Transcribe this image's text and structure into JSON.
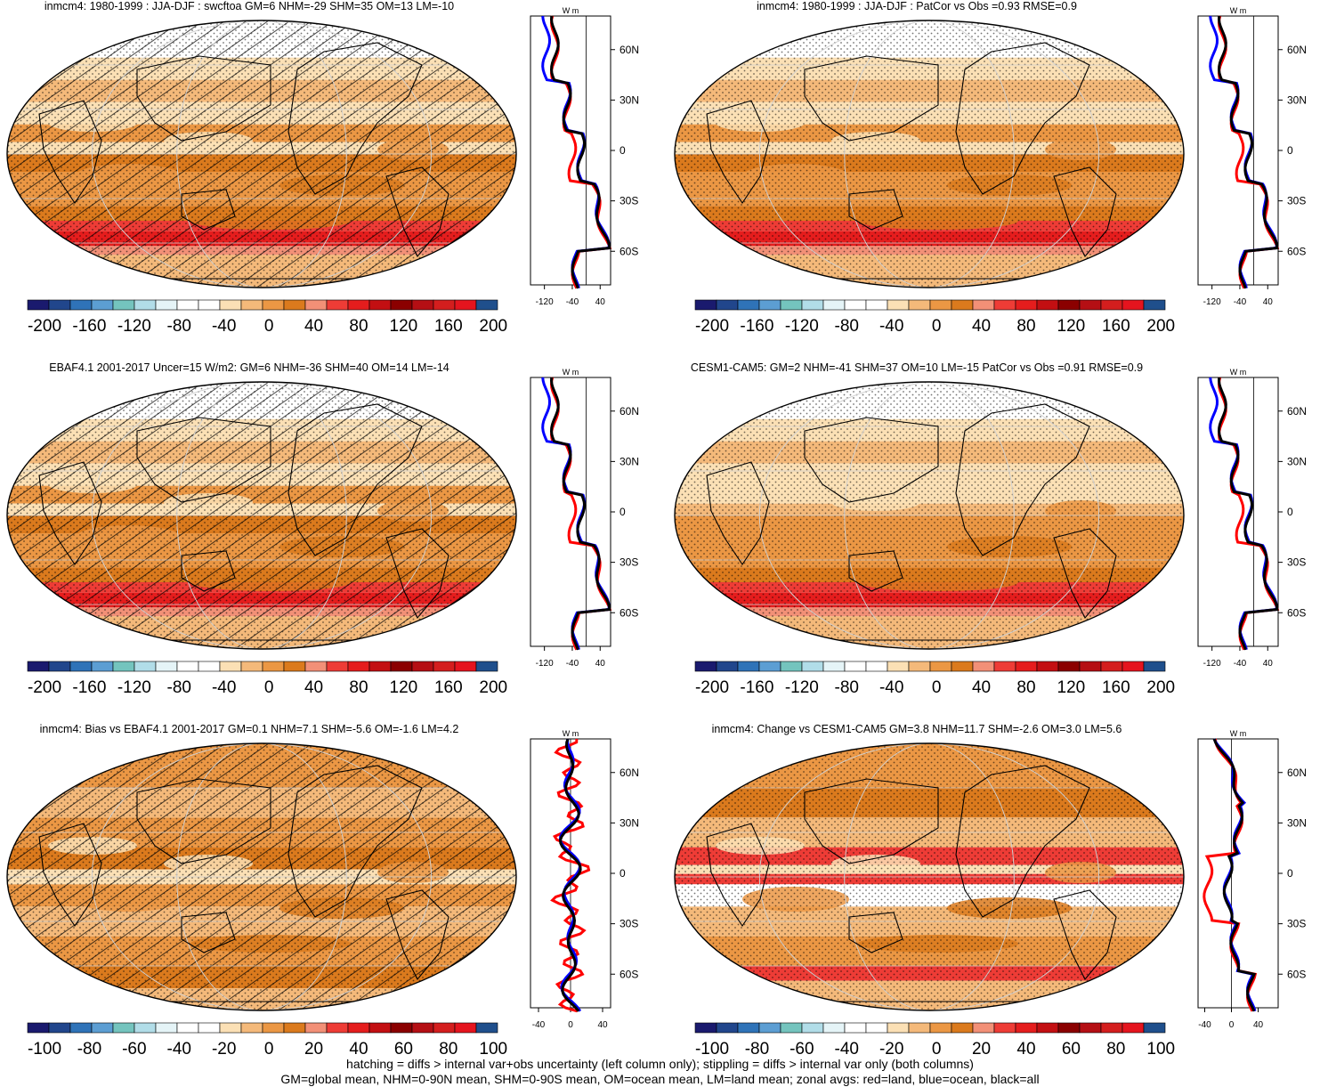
{
  "palette": [
    "#1a1a6e",
    "#21468c",
    "#2f73b8",
    "#5c9ed3",
    "#74c4be",
    "#b1dde8",
    "#e5f4f7",
    "#ffffff",
    "#ffffff",
    "#fbe0b5",
    "#f4b97a",
    "#eb9744",
    "#db7a1d",
    "#f29077",
    "#ee3c36",
    "#e51d1d",
    "#c30f12",
    "#8b0000",
    "#b50f14",
    "#d41e1e",
    "#e5141e",
    "#1f4f8c"
  ],
  "zonal_colors": {
    "land": "#ff0000",
    "ocean": "#0000ff",
    "all": "#000000"
  },
  "lat_ticks": [
    "60N",
    "30N",
    "0",
    "30S",
    "60S"
  ],
  "units": "W m",
  "panels": [
    {
      "title": "inmcm4: 1980-1999 : JJA-DJF : swcftoa GM=6 NHM=-29 SHM=35 OM=13 LM=-10",
      "cb_labels": [
        "-200",
        "-160",
        "-120",
        "-80",
        "-40",
        "0",
        "40",
        "80",
        "120",
        "160",
        "200"
      ],
      "x_ticks": [
        "-120",
        "-40",
        "40"
      ],
      "x_range": [
        -160,
        70
      ],
      "hatch": true,
      "style": "a"
    },
    {
      "title": "inmcm4: 1980-1999 : JJA-DJF : PatCor vs Obs =0.93 RMSE=0.9",
      "cb_labels": [
        "-200",
        "-160",
        "-120",
        "-80",
        "-40",
        "0",
        "40",
        "80",
        "120",
        "160",
        "200"
      ],
      "x_ticks": [
        "-120",
        "-40",
        "40"
      ],
      "x_range": [
        -160,
        70
      ],
      "hatch": false,
      "style": "a"
    },
    {
      "title": "EBAF4.1 2001-2017 Uncer=15 W/m2: GM=6 NHM=-36 SHM=40 OM=14 LM=-14",
      "cb_labels": [
        "-200",
        "-160",
        "-120",
        "-80",
        "-40",
        "0",
        "40",
        "80",
        "120",
        "160",
        "200"
      ],
      "x_ticks": [
        "-120",
        "-40",
        "40"
      ],
      "x_range": [
        -160,
        70
      ],
      "hatch": true,
      "style": "a"
    },
    {
      "title": "CESM1-CAM5: GM=2 NHM=-41 SHM=37 OM=10 LM=-15 PatCor vs Obs =0.91 RMSE=0.9",
      "cb_labels": [
        "-200",
        "-160",
        "-120",
        "-80",
        "-40",
        "0",
        "40",
        "80",
        "120",
        "160",
        "200"
      ],
      "x_ticks": [
        "-120",
        "-40",
        "40"
      ],
      "x_range": [
        -160,
        70
      ],
      "hatch": false,
      "style": "b"
    },
    {
      "title": "inmcm4: Bias vs EBAF4.1 2001-2017 GM=0.1 NHM=7.1 SHM=-5.6 OM=-1.6 LM=4.2",
      "cb_labels": [
        "-100",
        "-80",
        "-60",
        "-40",
        "-20",
        "0",
        "20",
        "40",
        "60",
        "80",
        "100"
      ],
      "x_ticks": [
        "-40",
        "0",
        "40"
      ],
      "x_range": [
        -50,
        50
      ],
      "hatch": true,
      "style": "c"
    },
    {
      "title": "inmcm4: Change vs CESM1-CAM5 GM=3.8 NHM=11.7 SHM=-2.6 OM=3.0 LM=5.6",
      "cb_labels": [
        "-100",
        "-80",
        "-60",
        "-40",
        "-20",
        "0",
        "20",
        "40",
        "60",
        "80",
        "100"
      ],
      "x_ticks": [
        "-40",
        "0",
        "40"
      ],
      "x_range": [
        -50,
        70
      ],
      "hatch": false,
      "style": "d"
    }
  ],
  "footer": {
    "line1": "hatching = diffs > internal var+obs uncertainty (left column only); stippling = diffs > internal var only (both columns)",
    "line2": "GM=global mean, NHM=0-90N mean, SHM=0-90S mean, OM=ocean mean, LM=land mean; zonal avgs: red=land, blue=ocean, black=all"
  }
}
